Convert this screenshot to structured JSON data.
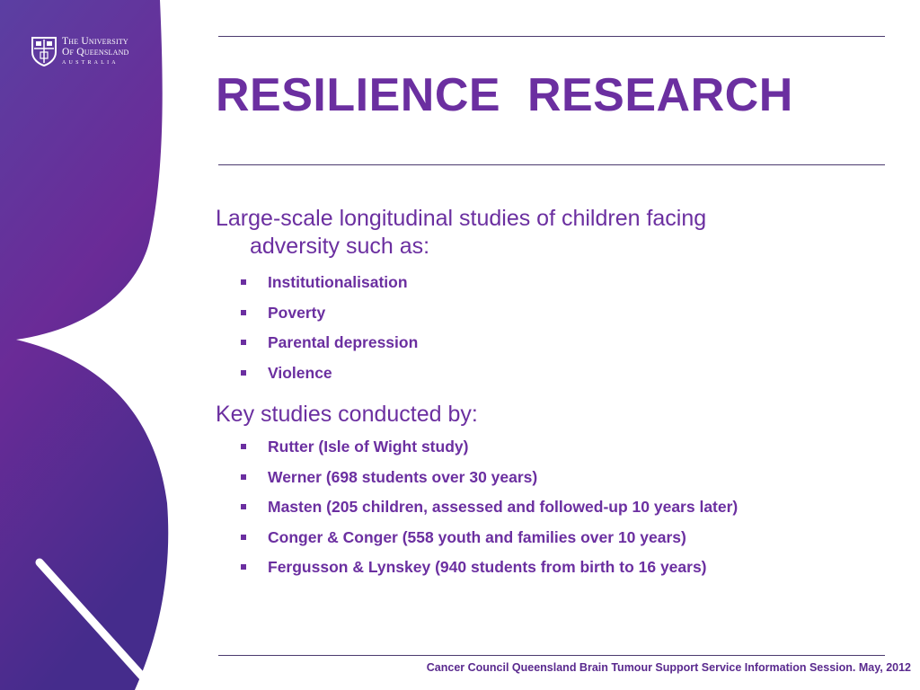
{
  "logo": {
    "line1": "The University",
    "line2": "Of Queensland",
    "line3": "AUSTRALIA"
  },
  "title": "RESILIENCE  RESEARCH",
  "section1": {
    "heading": "Large-scale longitudinal studies of children facing adversity such as:",
    "items": [
      "Institutionalisation",
      "Poverty",
      "Parental depression",
      "Violence"
    ]
  },
  "section2": {
    "heading": "Key studies  conducted by:",
    "items": [
      "Rutter (Isle of Wight study)",
      "Werner (698 students over 30 years)",
      "Masten (205 children, assessed and followed-up 10 years later)",
      "Conger & Conger (558 youth and families over 10 years)",
      "Fergusson & Lynskey (940 students from birth to 16 years)"
    ]
  },
  "footer": "Cancer Council Queensland Brain Tumour Support Service Information Session. May, 2012",
  "colors": {
    "accent": "#6b2fa0",
    "panel_top": "#5a3a9e",
    "panel_mid": "#6a2a9a",
    "panel_bottom": "#4a2a8e",
    "rule": "#4b3a6e"
  }
}
